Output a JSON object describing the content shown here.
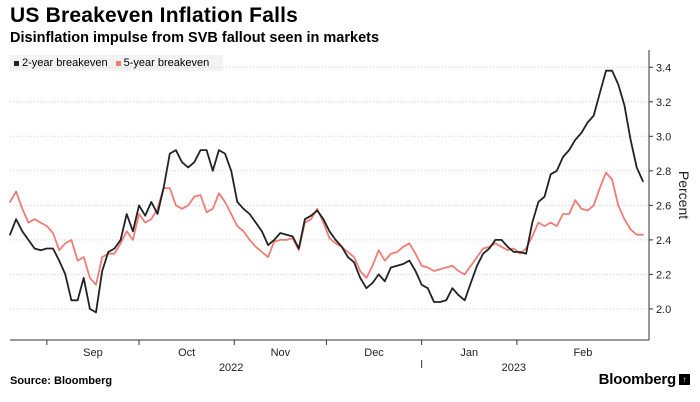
{
  "header": {
    "title": "US Breakeven Inflation Falls",
    "subtitle": "Disinflation impulse from SVB fallout seen in markets"
  },
  "footer": {
    "source": "Source: Bloomberg",
    "brand": "Bloomberg",
    "brand_badge": "↑"
  },
  "colors": {
    "series_2y": "#222222",
    "series_5y": "#ee7d75",
    "grid": "#cfcfcf",
    "axis": "#333333",
    "legend_bg": "#f3f3f3"
  },
  "chart_data": {
    "type": "line",
    "x_unit": "date",
    "ylabel": "Percent",
    "ylim": [
      1.82,
      3.5
    ],
    "y_ticks": [
      2.0,
      2.2,
      2.4,
      2.6,
      2.8,
      3.0,
      3.2,
      3.4
    ],
    "y_tick_labels": [
      "2.0",
      "2.2",
      "2.4",
      "2.6",
      "2.8",
      "3.0",
      "3.2",
      "3.4"
    ],
    "y_axis_position": "right",
    "grid": "horizontal dotted",
    "legend_position": "top-left",
    "x_ticks": [
      {
        "date": "2022-09-01",
        "label": "Sep"
      },
      {
        "date": "2022-10-01",
        "label": "Oct"
      },
      {
        "date": "2022-11-01",
        "label": "Nov"
      },
      {
        "date": "2022-12-01",
        "label": "Dec"
      },
      {
        "date": "2023-01-01",
        "label": "Jan"
      },
      {
        "date": "2023-02-01",
        "label": "Feb"
      }
    ],
    "year_labels": [
      {
        "date": "2022-10-31",
        "label": "2022"
      },
      {
        "date": "2023-01-31",
        "label": "2023"
      }
    ],
    "x_range": [
      "2022-08-20",
      "2023-03-16"
    ],
    "series": [
      {
        "name": "2-year breakeven",
        "points": [
          [
            "2022-08-20",
            2.43
          ],
          [
            "2022-08-22",
            2.52
          ],
          [
            "2022-08-24",
            2.45
          ],
          [
            "2022-08-26",
            2.4
          ],
          [
            "2022-08-28",
            2.35
          ],
          [
            "2022-08-30",
            2.34
          ],
          [
            "2022-09-01",
            2.35
          ],
          [
            "2022-09-03",
            2.35
          ],
          [
            "2022-09-05",
            2.28
          ],
          [
            "2022-09-07",
            2.2
          ],
          [
            "2022-09-09",
            2.05
          ],
          [
            "2022-09-11",
            2.05
          ],
          [
            "2022-09-13",
            2.18
          ],
          [
            "2022-09-15",
            2.0
          ],
          [
            "2022-09-17",
            1.98
          ],
          [
            "2022-09-19",
            2.22
          ],
          [
            "2022-09-21",
            2.33
          ],
          [
            "2022-09-23",
            2.35
          ],
          [
            "2022-09-25",
            2.4
          ],
          [
            "2022-09-27",
            2.55
          ],
          [
            "2022-09-29",
            2.45
          ],
          [
            "2022-10-01",
            2.6
          ],
          [
            "2022-10-03",
            2.54
          ],
          [
            "2022-10-05",
            2.62
          ],
          [
            "2022-10-07",
            2.55
          ],
          [
            "2022-10-09",
            2.7
          ],
          [
            "2022-10-11",
            2.9
          ],
          [
            "2022-10-13",
            2.92
          ],
          [
            "2022-10-15",
            2.85
          ],
          [
            "2022-10-17",
            2.82
          ],
          [
            "2022-10-19",
            2.85
          ],
          [
            "2022-10-21",
            2.92
          ],
          [
            "2022-10-23",
            2.92
          ],
          [
            "2022-10-25",
            2.8
          ],
          [
            "2022-10-27",
            2.92
          ],
          [
            "2022-10-29",
            2.9
          ],
          [
            "2022-10-31",
            2.8
          ],
          [
            "2022-11-02",
            2.62
          ],
          [
            "2022-11-04",
            2.58
          ],
          [
            "2022-11-06",
            2.55
          ],
          [
            "2022-11-08",
            2.5
          ],
          [
            "2022-11-10",
            2.45
          ],
          [
            "2022-11-12",
            2.37
          ],
          [
            "2022-11-14",
            2.4
          ],
          [
            "2022-11-16",
            2.44
          ],
          [
            "2022-11-18",
            2.43
          ],
          [
            "2022-11-20",
            2.42
          ],
          [
            "2022-11-22",
            2.35
          ],
          [
            "2022-11-24",
            2.52
          ],
          [
            "2022-11-26",
            2.54
          ],
          [
            "2022-11-28",
            2.57
          ],
          [
            "2022-11-30",
            2.52
          ],
          [
            "2022-12-02",
            2.45
          ],
          [
            "2022-12-04",
            2.4
          ],
          [
            "2022-12-06",
            2.36
          ],
          [
            "2022-12-08",
            2.3
          ],
          [
            "2022-12-10",
            2.27
          ],
          [
            "2022-12-12",
            2.18
          ],
          [
            "2022-12-14",
            2.12
          ],
          [
            "2022-12-16",
            2.15
          ],
          [
            "2022-12-18",
            2.2
          ],
          [
            "2022-12-20",
            2.16
          ],
          [
            "2022-12-22",
            2.24
          ],
          [
            "2022-12-24",
            2.25
          ],
          [
            "2022-12-26",
            2.26
          ],
          [
            "2022-12-28",
            2.28
          ],
          [
            "2022-12-30",
            2.22
          ],
          [
            "2023-01-01",
            2.14
          ],
          [
            "2023-01-03",
            2.12
          ],
          [
            "2023-01-05",
            2.04
          ],
          [
            "2023-01-07",
            2.04
          ],
          [
            "2023-01-09",
            2.05
          ],
          [
            "2023-01-11",
            2.12
          ],
          [
            "2023-01-13",
            2.08
          ],
          [
            "2023-01-15",
            2.05
          ],
          [
            "2023-01-17",
            2.15
          ],
          [
            "2023-01-19",
            2.25
          ],
          [
            "2023-01-21",
            2.32
          ],
          [
            "2023-01-23",
            2.35
          ],
          [
            "2023-01-25",
            2.4
          ],
          [
            "2023-01-27",
            2.4
          ],
          [
            "2023-01-29",
            2.36
          ],
          [
            "2023-01-31",
            2.33
          ],
          [
            "2023-02-02",
            2.33
          ],
          [
            "2023-02-04",
            2.32
          ],
          [
            "2023-02-06",
            2.5
          ],
          [
            "2023-02-08",
            2.62
          ],
          [
            "2023-02-10",
            2.65
          ],
          [
            "2023-02-12",
            2.78
          ],
          [
            "2023-02-14",
            2.8
          ],
          [
            "2023-02-16",
            2.88
          ],
          [
            "2023-02-18",
            2.92
          ],
          [
            "2023-02-20",
            2.98
          ],
          [
            "2023-02-22",
            3.02
          ],
          [
            "2023-02-24",
            3.08
          ],
          [
            "2023-02-26",
            3.12
          ],
          [
            "2023-02-28",
            3.25
          ],
          [
            "2023-03-02",
            3.38
          ],
          [
            "2023-03-04",
            3.38
          ],
          [
            "2023-03-06",
            3.3
          ],
          [
            "2023-03-08",
            3.18
          ],
          [
            "2023-03-10",
            2.98
          ],
          [
            "2023-03-12",
            2.82
          ],
          [
            "2023-03-14",
            2.74
          ]
        ]
      },
      {
        "name": "5-year breakeven",
        "points": [
          [
            "2022-08-20",
            2.62
          ],
          [
            "2022-08-22",
            2.68
          ],
          [
            "2022-08-24",
            2.58
          ],
          [
            "2022-08-26",
            2.5
          ],
          [
            "2022-08-28",
            2.52
          ],
          [
            "2022-08-30",
            2.5
          ],
          [
            "2022-09-01",
            2.48
          ],
          [
            "2022-09-03",
            2.44
          ],
          [
            "2022-09-05",
            2.34
          ],
          [
            "2022-09-07",
            2.38
          ],
          [
            "2022-09-09",
            2.4
          ],
          [
            "2022-09-11",
            2.28
          ],
          [
            "2022-09-13",
            2.3
          ],
          [
            "2022-09-15",
            2.18
          ],
          [
            "2022-09-17",
            2.14
          ],
          [
            "2022-09-19",
            2.3
          ],
          [
            "2022-09-21",
            2.32
          ],
          [
            "2022-09-23",
            2.32
          ],
          [
            "2022-09-25",
            2.38
          ],
          [
            "2022-09-27",
            2.45
          ],
          [
            "2022-09-29",
            2.4
          ],
          [
            "2022-10-01",
            2.55
          ],
          [
            "2022-10-03",
            2.5
          ],
          [
            "2022-10-05",
            2.52
          ],
          [
            "2022-10-07",
            2.58
          ],
          [
            "2022-10-09",
            2.7
          ],
          [
            "2022-10-11",
            2.7
          ],
          [
            "2022-10-13",
            2.6
          ],
          [
            "2022-10-15",
            2.58
          ],
          [
            "2022-10-17",
            2.6
          ],
          [
            "2022-10-19",
            2.65
          ],
          [
            "2022-10-21",
            2.66
          ],
          [
            "2022-10-23",
            2.56
          ],
          [
            "2022-10-25",
            2.58
          ],
          [
            "2022-10-27",
            2.67
          ],
          [
            "2022-10-29",
            2.62
          ],
          [
            "2022-10-31",
            2.55
          ],
          [
            "2022-11-02",
            2.48
          ],
          [
            "2022-11-04",
            2.45
          ],
          [
            "2022-11-06",
            2.4
          ],
          [
            "2022-11-08",
            2.36
          ],
          [
            "2022-11-10",
            2.33
          ],
          [
            "2022-11-12",
            2.3
          ],
          [
            "2022-11-14",
            2.39
          ],
          [
            "2022-11-16",
            2.4
          ],
          [
            "2022-11-18",
            2.4
          ],
          [
            "2022-11-20",
            2.41
          ],
          [
            "2022-11-22",
            2.34
          ],
          [
            "2022-11-24",
            2.5
          ],
          [
            "2022-11-26",
            2.52
          ],
          [
            "2022-11-28",
            2.58
          ],
          [
            "2022-11-30",
            2.5
          ],
          [
            "2022-12-02",
            2.41
          ],
          [
            "2022-12-04",
            2.38
          ],
          [
            "2022-12-06",
            2.36
          ],
          [
            "2022-12-08",
            2.33
          ],
          [
            "2022-12-10",
            2.3
          ],
          [
            "2022-12-12",
            2.22
          ],
          [
            "2022-12-14",
            2.18
          ],
          [
            "2022-12-16",
            2.25
          ],
          [
            "2022-12-18",
            2.34
          ],
          [
            "2022-12-20",
            2.28
          ],
          [
            "2022-12-22",
            2.32
          ],
          [
            "2022-12-24",
            2.33
          ],
          [
            "2022-12-26",
            2.36
          ],
          [
            "2022-12-28",
            2.38
          ],
          [
            "2022-12-30",
            2.32
          ],
          [
            "2023-01-01",
            2.25
          ],
          [
            "2023-01-03",
            2.24
          ],
          [
            "2023-01-05",
            2.22
          ],
          [
            "2023-01-07",
            2.23
          ],
          [
            "2023-01-09",
            2.24
          ],
          [
            "2023-01-11",
            2.25
          ],
          [
            "2023-01-13",
            2.22
          ],
          [
            "2023-01-15",
            2.2
          ],
          [
            "2023-01-17",
            2.25
          ],
          [
            "2023-01-19",
            2.3
          ],
          [
            "2023-01-21",
            2.35
          ],
          [
            "2023-01-23",
            2.36
          ],
          [
            "2023-01-25",
            2.38
          ],
          [
            "2023-01-27",
            2.36
          ],
          [
            "2023-01-29",
            2.34
          ],
          [
            "2023-01-31",
            2.35
          ],
          [
            "2023-02-02",
            2.32
          ],
          [
            "2023-02-04",
            2.35
          ],
          [
            "2023-02-06",
            2.42
          ],
          [
            "2023-02-08",
            2.5
          ],
          [
            "2023-02-10",
            2.48
          ],
          [
            "2023-02-12",
            2.5
          ],
          [
            "2023-02-14",
            2.48
          ],
          [
            "2023-02-16",
            2.55
          ],
          [
            "2023-02-18",
            2.55
          ],
          [
            "2023-02-20",
            2.63
          ],
          [
            "2023-02-22",
            2.58
          ],
          [
            "2023-02-24",
            2.57
          ],
          [
            "2023-02-26",
            2.6
          ],
          [
            "2023-02-28",
            2.7
          ],
          [
            "2023-03-02",
            2.79
          ],
          [
            "2023-03-04",
            2.75
          ],
          [
            "2023-03-06",
            2.6
          ],
          [
            "2023-03-08",
            2.52
          ],
          [
            "2023-03-10",
            2.46
          ],
          [
            "2023-03-12",
            2.43
          ],
          [
            "2023-03-14",
            2.43
          ]
        ]
      }
    ]
  }
}
